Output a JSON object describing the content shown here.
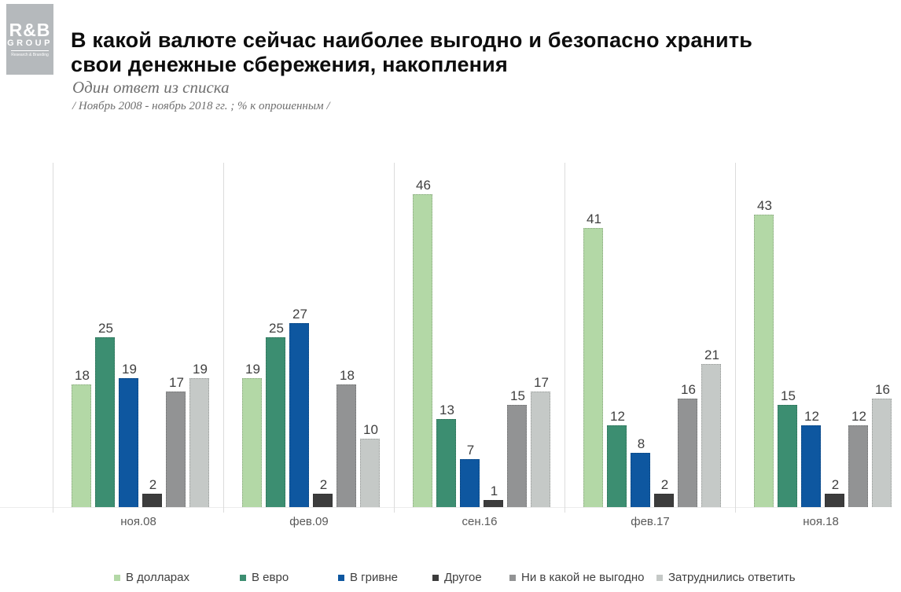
{
  "logo": {
    "line1": "R&B",
    "line2": "GROUP",
    "line3": "Research & Branding"
  },
  "header": {
    "title_line1": "В какой валюте сейчас наиболее выгодно и безопасно хранить",
    "title_line2": "свои денежные сбережения, накопления",
    "subtitle": "Один ответ из списка",
    "note": "/ Ноябрь 2008 - ноябрь 2018  гг. ; % к опрошенным /"
  },
  "chart_data": {
    "type": "bar",
    "title": "В какой валюте сейчас наиболее выгодно и безопасно хранить свои денежные сбережения, накопления",
    "categories": [
      "ноя.08",
      "фев.09",
      "сен.16",
      "фев.17",
      "ноя.18"
    ],
    "series": [
      {
        "name": "В долларах",
        "color": "#b3d8a6",
        "values": [
          18,
          19,
          46,
          41,
          43
        ]
      },
      {
        "name": "В евро",
        "color": "#3c8e71",
        "values": [
          25,
          25,
          13,
          12,
          15
        ]
      },
      {
        "name": "В гривне",
        "color": "#0e57a0",
        "values": [
          19,
          27,
          7,
          8,
          12
        ]
      },
      {
        "name": "Другое",
        "color": "#3c3c3c",
        "values": [
          2,
          2,
          1,
          2,
          2
        ]
      },
      {
        "name": "Ни в какой не выгодно",
        "color": "#929394",
        "values": [
          17,
          18,
          15,
          16,
          12
        ]
      },
      {
        "name": "Затруднились ответить",
        "color": "#c5c9c7",
        "values": [
          19,
          10,
          17,
          21,
          16
        ]
      }
    ],
    "ylim": [
      0,
      50
    ],
    "data_labels": true,
    "grid": false,
    "legend_position": "bottom",
    "xlabel": "",
    "ylabel": ""
  }
}
